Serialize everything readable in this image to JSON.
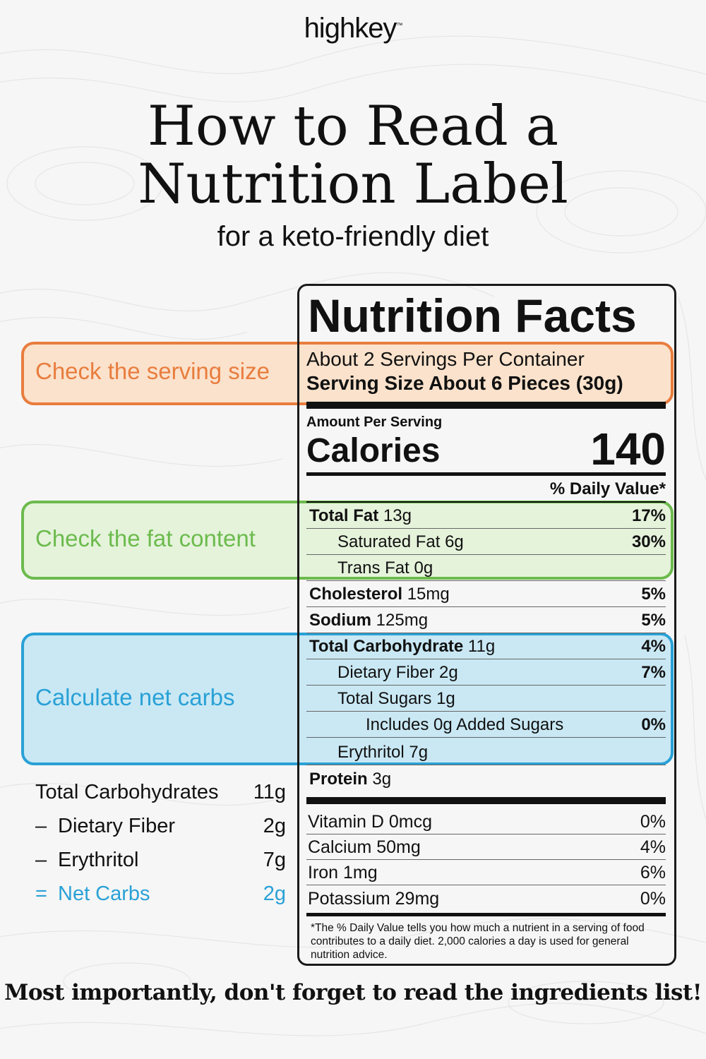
{
  "brand": {
    "logo_text": "highkey",
    "trademark": "™"
  },
  "header": {
    "title_line1": "How to Read a",
    "title_line2": "Nutrition Label",
    "subtitle": "for a keto-friendly diet"
  },
  "callouts": {
    "serving": "Check the serving size",
    "fat": "Check the fat content",
    "carbs": "Calculate net carbs"
  },
  "colors": {
    "serving_accent": "#e87d3e",
    "fat_accent": "#6cbb4d",
    "carbs_accent": "#29a1d6",
    "background": "#f6f6f6",
    "text": "#111111"
  },
  "nutrition_facts": {
    "title": "Nutrition Facts",
    "servings_per_container": "About 2 Servings Per Container",
    "serving_size": "Serving Size About 6 Pieces (30g)",
    "amount_per_serving": "Amount Per Serving",
    "calories_label": "Calories",
    "calories_value": "140",
    "daily_value_header": "% Daily Value*",
    "rows": [
      {
        "bold": "Total Fat",
        "amount": " 13g",
        "pct": "17%"
      },
      {
        "bold": "",
        "amount": "Saturated Fat 6g",
        "pct": "30%"
      },
      {
        "bold": "",
        "amount": "Trans Fat 0g",
        "pct": ""
      },
      {
        "bold": "Cholesterol",
        "amount": " 15mg",
        "pct": "5%"
      },
      {
        "bold": "Sodium",
        "amount": " 125mg",
        "pct": "5%"
      },
      {
        "bold": "Total Carbohydrate",
        "amount": " 11g",
        "pct": "4%"
      },
      {
        "bold": "",
        "amount": "Dietary Fiber 2g",
        "pct": "7%"
      },
      {
        "bold": "",
        "amount": "Total Sugars 1g",
        "pct": ""
      },
      {
        "bold": "",
        "amount": "Includes 0g Added Sugars",
        "pct": "0%"
      },
      {
        "bold": "",
        "amount": "Erythritol 7g",
        "pct": ""
      },
      {
        "bold": "Protein",
        "amount": " 3g",
        "pct": ""
      }
    ],
    "vitamins": [
      {
        "name": "Vitamin D 0mcg",
        "pct": "0%"
      },
      {
        "name": "Calcium 50mg",
        "pct": "4%"
      },
      {
        "name": "Iron 1mg",
        "pct": "6%"
      },
      {
        "name": "Potassium 29mg",
        "pct": "0%"
      }
    ],
    "footnote": "*The % Daily Value tells you how much a nutrient in a serving of food contributes to a daily diet. 2,000 calories a day is used for general nutrition advice."
  },
  "net_carbs": {
    "total": {
      "label": "Total Carbohydrates",
      "value": "11g"
    },
    "fiber": {
      "op": "–",
      "label": "Dietary Fiber",
      "value": "2g"
    },
    "erythritol": {
      "op": "–",
      "label": "Erythritol",
      "value": "7g"
    },
    "net": {
      "op": "=",
      "label": "Net Carbs",
      "value": "2g"
    }
  },
  "footer_note": "Most importantly, don't forget to read the ingredients list!"
}
